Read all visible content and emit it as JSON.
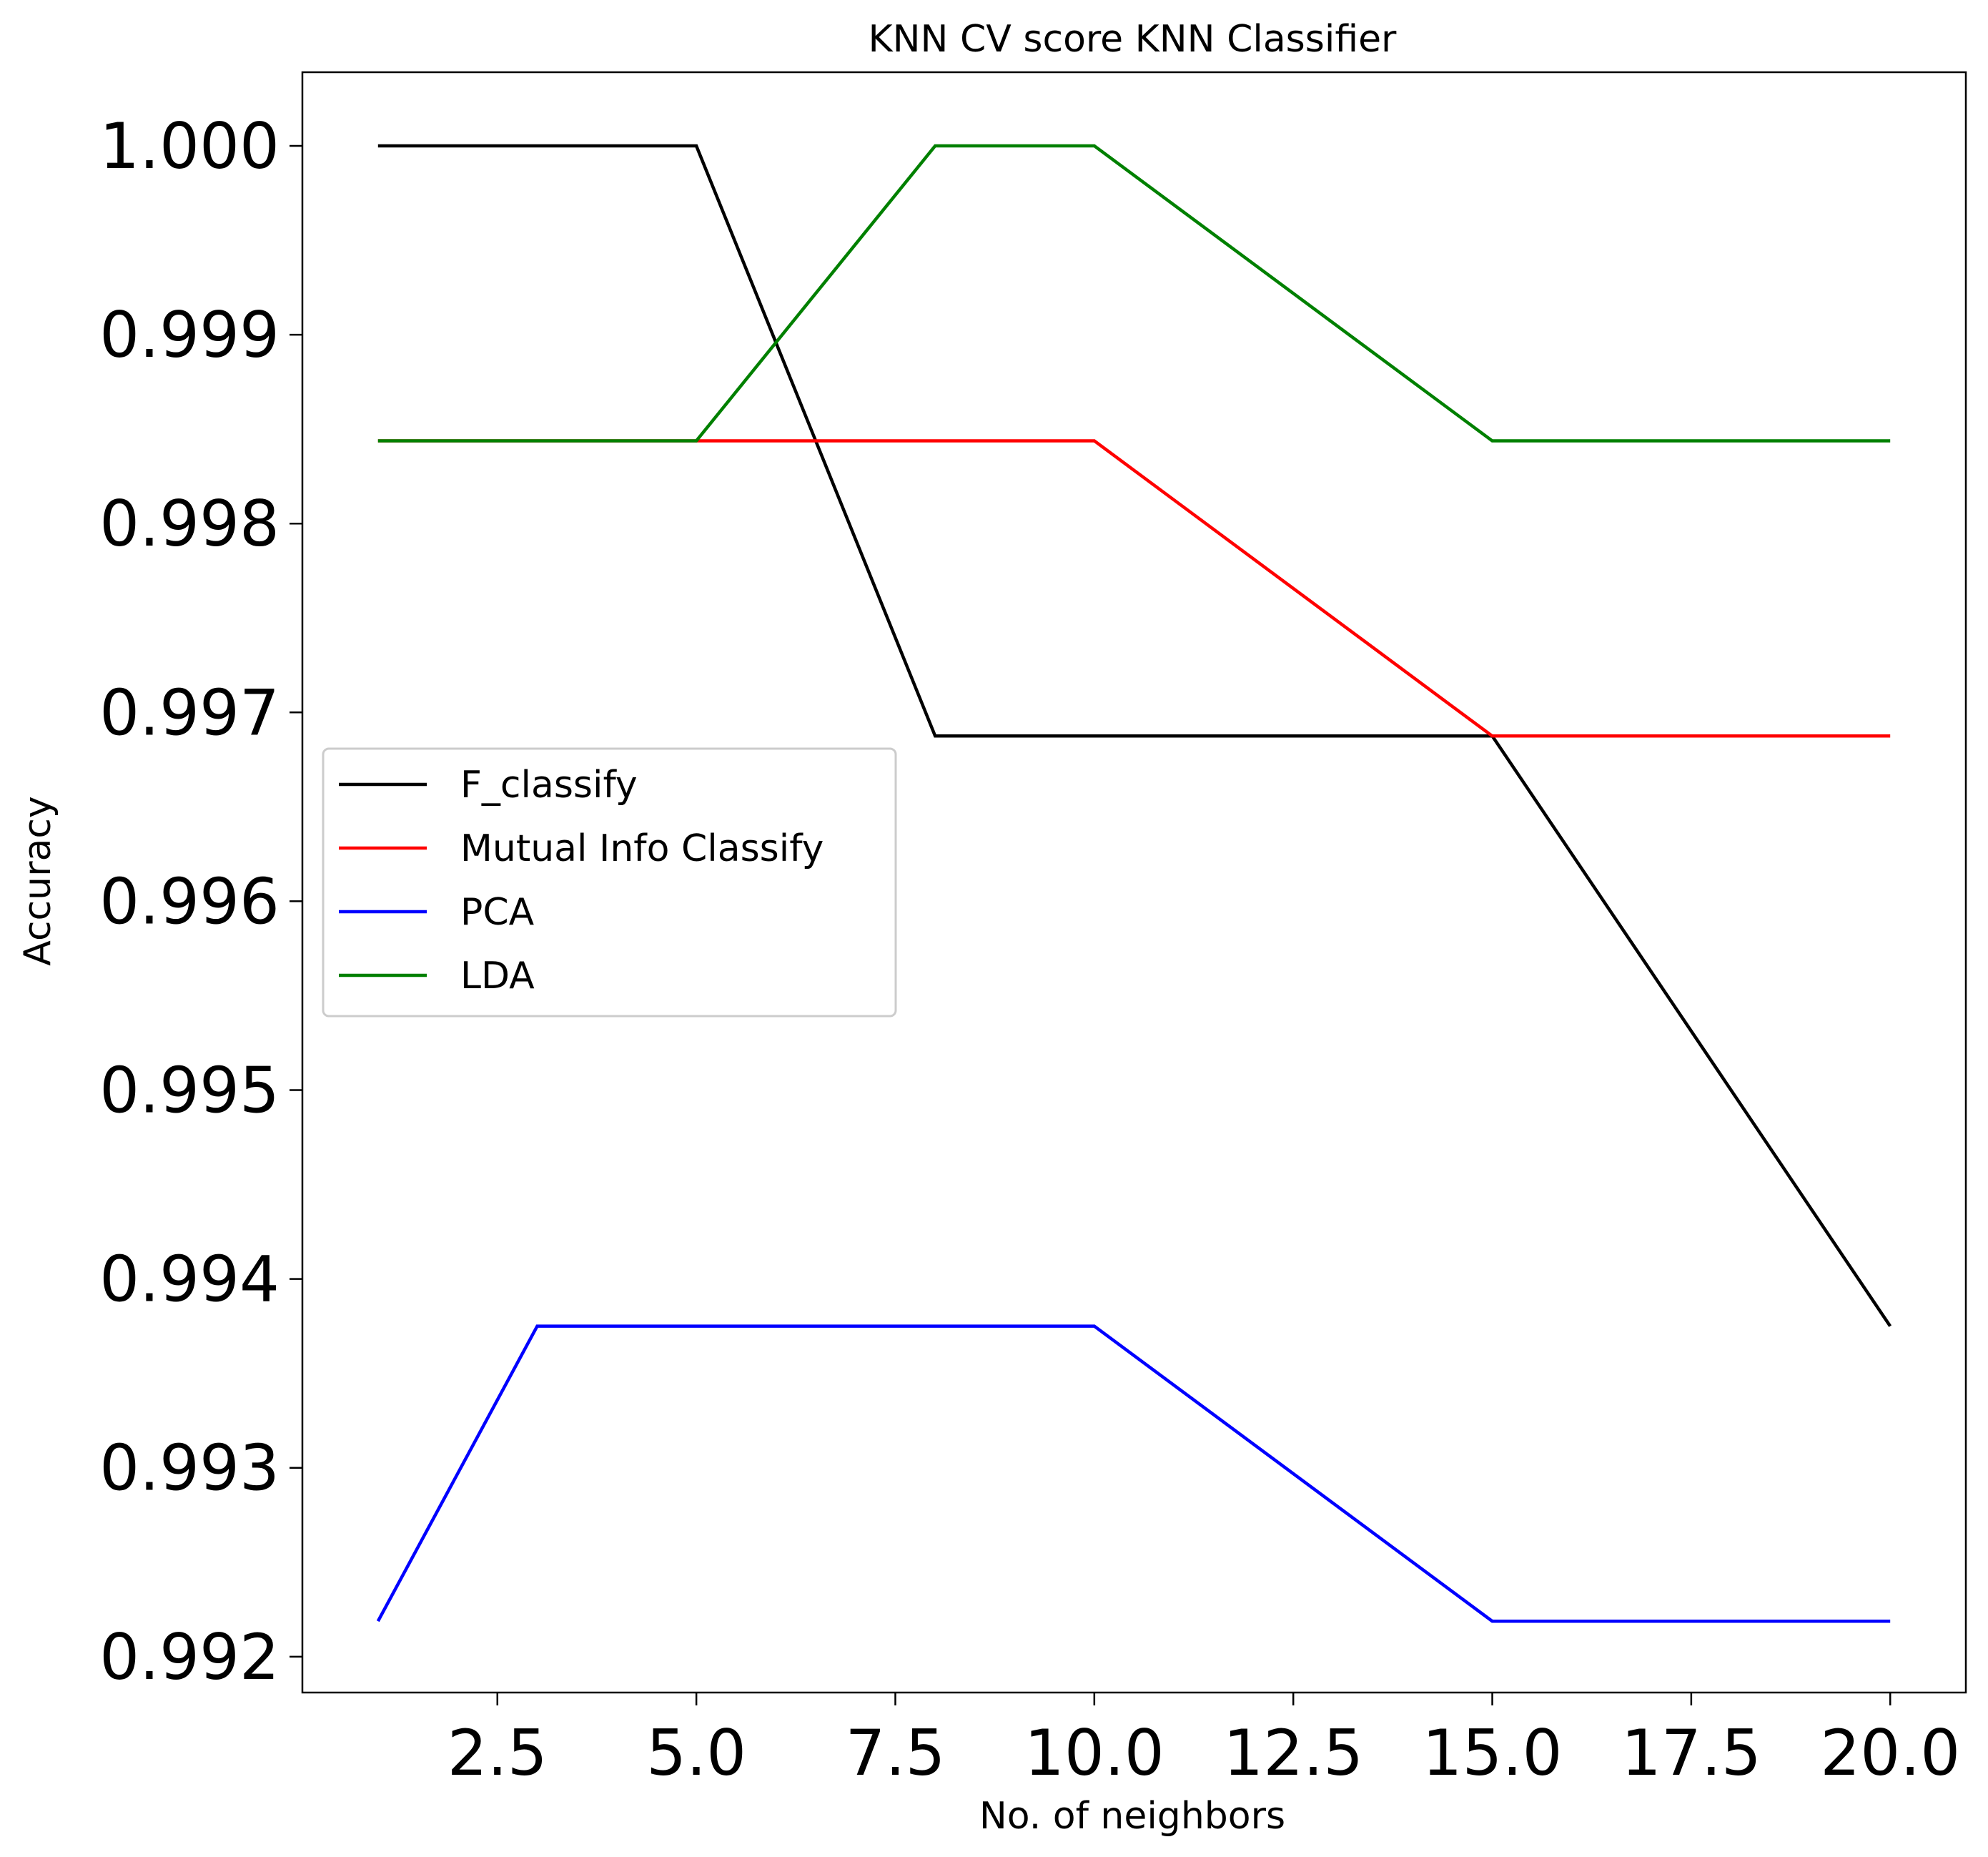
{
  "chart_data": {
    "type": "line",
    "title": "KNN CV score KNN Classifier",
    "xlabel": "No. of neighbors",
    "ylabel": "Accuracy",
    "xlim": [
      0.05,
      20.95
    ],
    "ylim": [
      0.99181,
      1.00039
    ],
    "xticks": [
      2.5,
      5.0,
      7.5,
      10.0,
      12.5,
      15.0,
      17.5,
      20.0
    ],
    "xtick_labels": [
      "2.5",
      "5.0",
      "7.5",
      "10.0",
      "12.5",
      "15.0",
      "17.5",
      "20.0"
    ],
    "yticks": [
      0.992,
      0.993,
      0.994,
      0.995,
      0.996,
      0.997,
      0.998,
      0.999,
      1.0
    ],
    "ytick_labels": [
      "0.992",
      "0.993",
      "0.994",
      "0.995",
      "0.996",
      "0.997",
      "0.998",
      "0.999",
      "1.000"
    ],
    "grid": false,
    "legend_position": "center-left",
    "series": [
      {
        "name": "F_classify",
        "color": "#000000",
        "x": [
          1,
          3,
          5,
          8,
          10,
          15,
          20
        ],
        "y": [
          1.0,
          1.0,
          1.0,
          0.996875,
          0.996875,
          0.996875,
          0.99375
        ]
      },
      {
        "name": "Mutual Info Classify",
        "color": "#ff0000",
        "x": [
          1,
          3,
          5,
          8,
          10,
          15,
          20
        ],
        "y": [
          0.998438,
          0.998438,
          0.998438,
          0.998438,
          0.998438,
          0.996875,
          0.996875
        ]
      },
      {
        "name": "PCA",
        "color": "#0000ff",
        "x": [
          1,
          3,
          5,
          8,
          10,
          15,
          20
        ],
        "y": [
          0.992188,
          0.99375,
          0.99375,
          0.99375,
          0.99375,
          0.992188,
          0.992188
        ]
      },
      {
        "name": "LDA",
        "color": "#008000",
        "x": [
          1,
          3,
          5,
          8,
          10,
          15,
          20
        ],
        "y": [
          0.998438,
          0.998438,
          0.998438,
          1.0,
          1.0,
          0.998438,
          0.998438
        ]
      }
    ]
  }
}
